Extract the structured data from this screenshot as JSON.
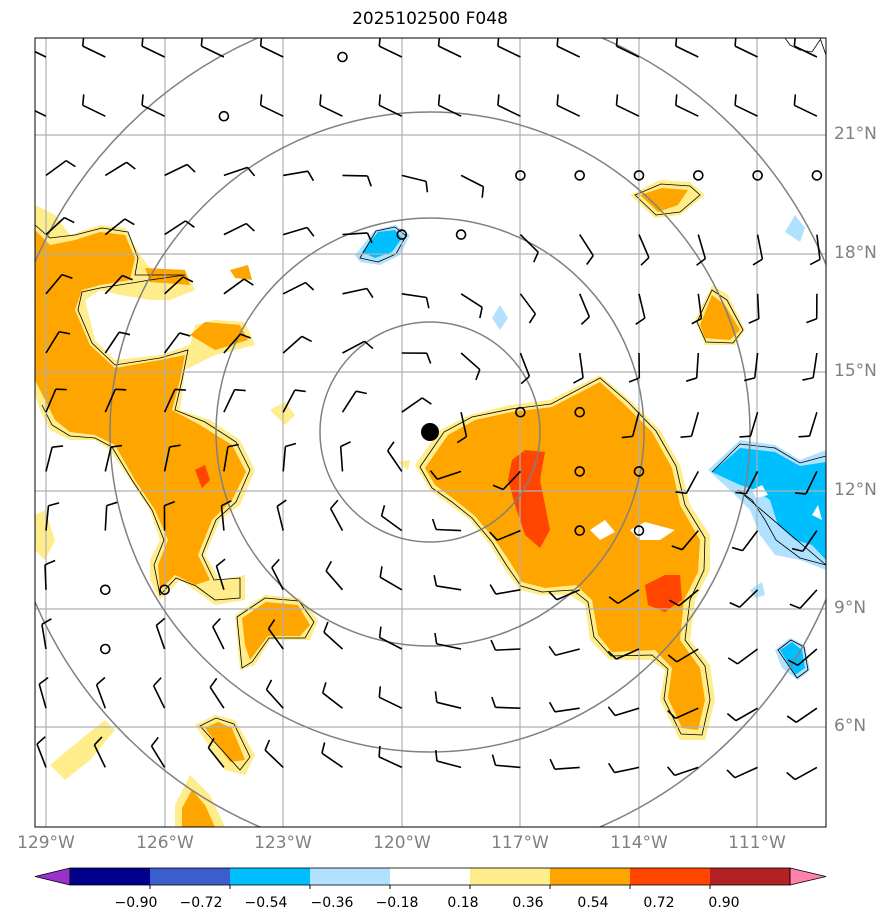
{
  "title": "2025102500 F048",
  "lat_labels": [
    "21°N",
    "18°N",
    "15°N",
    "12°N",
    "9°N",
    "6°N"
  ],
  "lon_labels": [
    "129°W",
    "126°W",
    "123°W",
    "120°W",
    "117°W",
    "114°W",
    "111°W"
  ],
  "colorbar": {
    "ticks": [
      "−0.90",
      "−0.72",
      "−0.54",
      "−0.36",
      "−0.18",
      "0.18",
      "0.36",
      "0.54",
      "0.72",
      "0.90"
    ],
    "colors": [
      "#9932cc",
      "#00008b",
      "#3a5fcd",
      "#00bfff",
      "#b0e2ff",
      "#ffffff",
      "#ffec8b",
      "#ffa500",
      "#ff4500",
      "#b22222",
      "#ff82ab"
    ]
  },
  "map_data": {
    "projection": "lat-lon",
    "extent_lon": [
      -129.3,
      -109.3
    ],
    "extent_lat": [
      3.0,
      23.0
    ],
    "storm_center": {
      "lon": -119.3,
      "lat": 13.5
    },
    "range_rings": 5,
    "barb_color": "#000000",
    "ring_color": "#808080"
  }
}
